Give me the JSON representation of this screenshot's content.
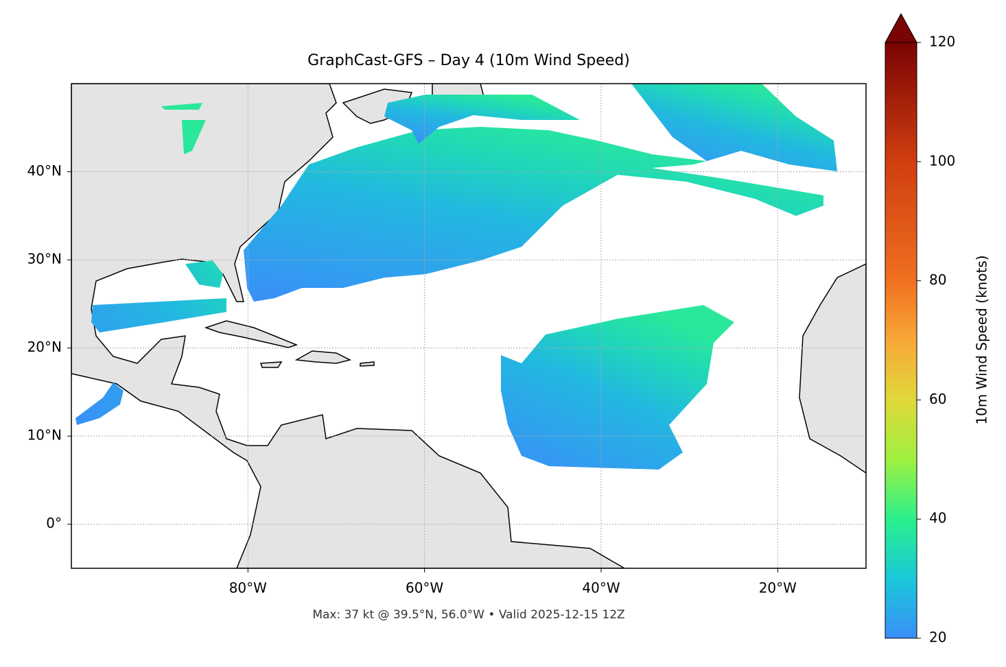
{
  "chart_data": {
    "type": "map",
    "title": "GraphCast-GFS – Day 4 (10m Wind Speed)",
    "annotation": "Max: 37 kt @ 39.5°N, 56.0°W • Valid 2025-12-15 12Z",
    "xlim": [
      -100,
      -10
    ],
    "ylim": [
      -5,
      50
    ],
    "xticks": [
      {
        "value": -80,
        "label": "80°W"
      },
      {
        "value": -60,
        "label": "60°W"
      },
      {
        "value": -40,
        "label": "40°W"
      },
      {
        "value": -20,
        "label": "20°W"
      }
    ],
    "yticks": [
      {
        "value": 0,
        "label": "0°"
      },
      {
        "value": 10,
        "label": "10°N"
      },
      {
        "value": 20,
        "label": "20°N"
      },
      {
        "value": 30,
        "label": "30°N"
      },
      {
        "value": 40,
        "label": "40°N"
      }
    ],
    "grid": true,
    "colorbar": {
      "label": "10m Wind Speed (knots)",
      "lim": [
        20,
        120
      ],
      "ticks": [
        20,
        40,
        60,
        80,
        100,
        120
      ]
    }
  }
}
